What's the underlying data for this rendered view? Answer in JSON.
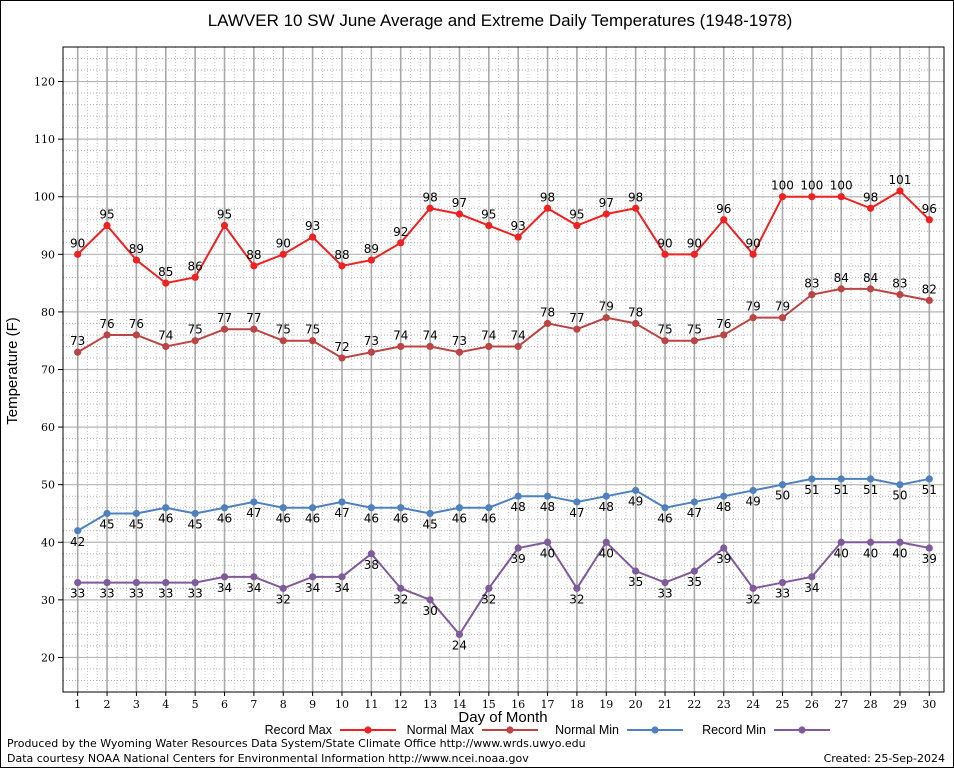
{
  "chart_data": {
    "type": "line",
    "title": "LAWVER 10 SW June Average and Extreme Daily Temperatures (1948-1978)",
    "xlabel": "Day of Month",
    "ylabel": "Temperature (F)",
    "ylim": [
      14,
      126
    ],
    "xlim": [
      0.5,
      30.5
    ],
    "yticks": [
      20,
      30,
      40,
      50,
      60,
      70,
      80,
      90,
      100,
      110,
      120
    ],
    "x": [
      1,
      2,
      3,
      4,
      5,
      6,
      7,
      8,
      9,
      10,
      11,
      12,
      13,
      14,
      15,
      16,
      17,
      18,
      19,
      20,
      21,
      22,
      23,
      24,
      25,
      26,
      27,
      28,
      29,
      30
    ],
    "grid": true,
    "legend_position": "bottom",
    "series": [
      {
        "name": "Record Max",
        "color": "#ee2222",
        "label_pos": "above",
        "values": [
          90,
          95,
          89,
          85,
          86,
          95,
          88,
          90,
          93,
          88,
          89,
          92,
          98,
          97,
          95,
          93,
          98,
          95,
          97,
          98,
          90,
          90,
          96,
          90,
          100,
          100,
          100,
          98,
          101,
          96
        ]
      },
      {
        "name": "Normal Max",
        "color": "#bb4444",
        "label_pos": "above",
        "values": [
          73,
          76,
          76,
          74,
          75,
          77,
          77,
          75,
          75,
          72,
          73,
          74,
          74,
          73,
          74,
          74,
          78,
          77,
          79,
          78,
          75,
          75,
          76,
          79,
          79,
          83,
          84,
          84,
          83,
          82
        ]
      },
      {
        "name": "Normal Min",
        "color": "#4f81bd",
        "label_pos": "below",
        "values": [
          42,
          45,
          45,
          46,
          45,
          46,
          47,
          46,
          46,
          47,
          46,
          46,
          45,
          46,
          46,
          48,
          48,
          47,
          48,
          49,
          46,
          47,
          48,
          49,
          50,
          51,
          51,
          51,
          50,
          51
        ]
      },
      {
        "name": "Record Min",
        "color": "#7f5b9b",
        "label_pos": "below",
        "values": [
          33,
          33,
          33,
          33,
          33,
          34,
          34,
          32,
          34,
          34,
          38,
          32,
          30,
          24,
          32,
          39,
          40,
          32,
          40,
          35,
          33,
          35,
          39,
          32,
          33,
          34,
          40,
          40,
          40,
          39
        ]
      }
    ]
  },
  "footer": {
    "produced_by": "Produced by the Wyoming Water Resources Data System/State Climate Office http://www.wrds.uwyo.edu",
    "data_courtesy": "Data courtesy NOAA National Centers for Environmental Information http://www.ncei.noaa.gov",
    "created": "Created:  25-Sep-2024"
  }
}
